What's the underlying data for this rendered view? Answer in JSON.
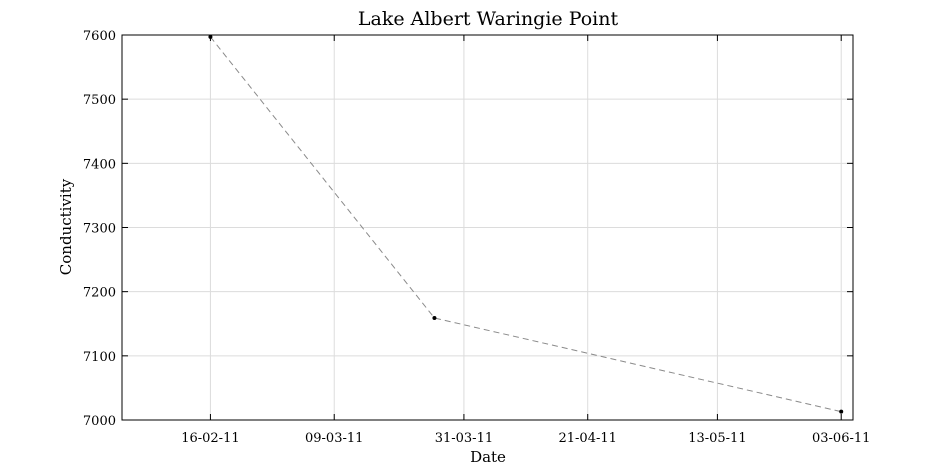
{
  "chart_data": {
    "type": "line",
    "title": "Lake Albert Waringie Point",
    "xlabel": "Date",
    "ylabel": "Conductivity",
    "x_ticks": [
      "16-02-11",
      "09-03-11",
      "31-03-11",
      "21-04-11",
      "13-05-11",
      "03-06-11"
    ],
    "y_ticks": [
      "7000",
      "7100",
      "7200",
      "7300",
      "7400",
      "7500",
      "7600"
    ],
    "ylim": [
      7000,
      7600
    ],
    "xlim": [
      "2011-02-01",
      "2011-06-05"
    ],
    "grid": true,
    "series": [
      {
        "line_style": "dashed",
        "color": "#8a8a8a",
        "marker_color": "#000000",
        "points": [
          {
            "x": "2011-02-16",
            "y": 7597
          },
          {
            "x": "2011-03-26",
            "y": 7159
          },
          {
            "x": "2011-06-03",
            "y": 7013
          }
        ]
      }
    ]
  }
}
